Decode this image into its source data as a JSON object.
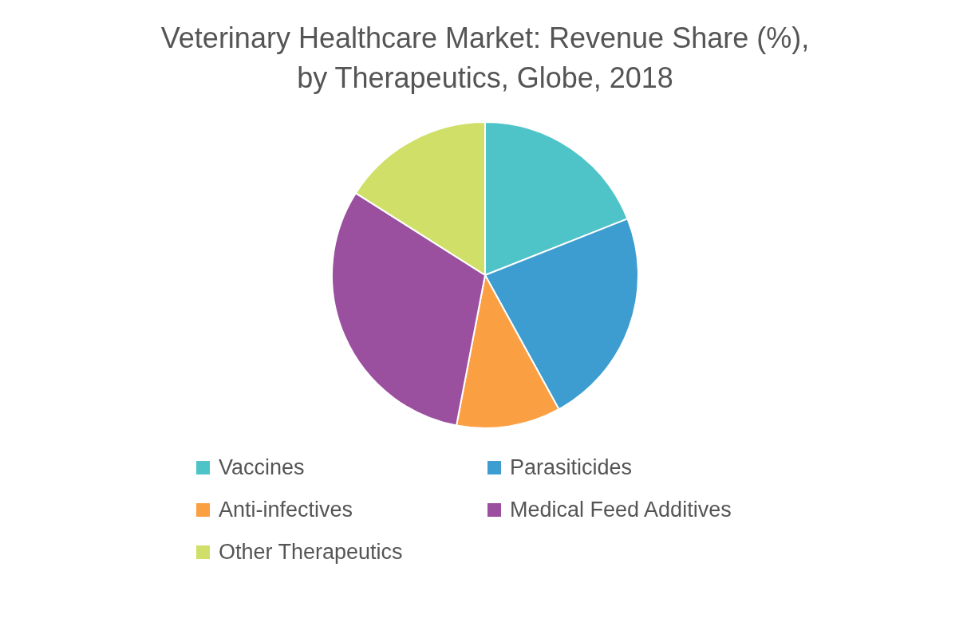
{
  "chart_data": {
    "type": "pie",
    "title": "Veterinary Healthcare Market: Revenue Share (%), by Therapeutics, Globe, 2018",
    "categories": [
      "Vaccines",
      "Parasiticides",
      "Anti-infectives",
      "Medical Feed Additives",
      "Other Therapeutics"
    ],
    "values": [
      19,
      23,
      11,
      31,
      16
    ],
    "colors": [
      "#4fc4c8",
      "#3d9dd0",
      "#fb9f43",
      "#9b4f9f",
      "#d0df67"
    ],
    "legend": "bottom"
  }
}
